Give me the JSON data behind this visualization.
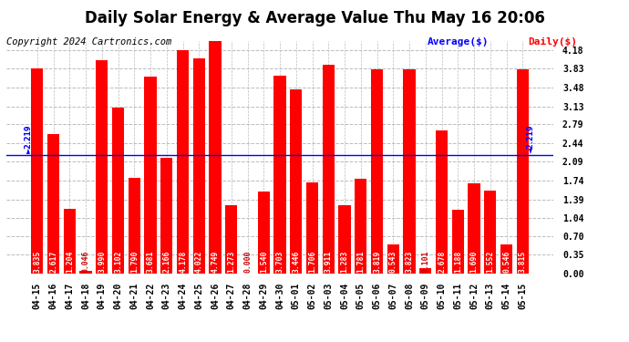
{
  "title": "Daily Solar Energy & Average Value Thu May 16 20:06",
  "copyright": "Copyright 2024 Cartronics.com",
  "legend_average": "Average($)",
  "legend_daily": "Daily($)",
  "average_value": 2.219,
  "categories": [
    "04-15",
    "04-16",
    "04-17",
    "04-18",
    "04-19",
    "04-20",
    "04-21",
    "04-22",
    "04-23",
    "04-24",
    "04-25",
    "04-26",
    "04-27",
    "04-28",
    "04-29",
    "04-30",
    "05-01",
    "05-02",
    "05-03",
    "05-04",
    "05-05",
    "05-06",
    "05-07",
    "05-08",
    "05-09",
    "05-10",
    "05-11",
    "05-12",
    "05-13",
    "05-14",
    "05-15"
  ],
  "values": [
    3.835,
    2.617,
    1.204,
    0.046,
    3.99,
    3.102,
    1.79,
    3.681,
    2.166,
    4.178,
    4.022,
    4.749,
    1.273,
    0.0,
    1.54,
    3.703,
    3.446,
    1.706,
    3.911,
    1.283,
    1.781,
    3.819,
    0.543,
    3.823,
    0.101,
    2.678,
    1.188,
    1.69,
    1.552,
    0.546,
    3.815
  ],
  "bar_color": "#ff0000",
  "average_line_color": "#0000ff",
  "avg_label_color": "#0000ff",
  "daily_label_color": "#ff0000",
  "background_color": "#ffffff",
  "grid_color": "#bbbbbb",
  "yticks": [
    0.0,
    0.35,
    0.7,
    1.04,
    1.39,
    1.74,
    2.09,
    2.44,
    2.79,
    3.13,
    3.48,
    3.83,
    4.18
  ],
  "ylim": [
    0,
    4.35
  ],
  "title_fontsize": 12,
  "tick_fontsize": 7,
  "value_fontsize": 5.8,
  "copyright_fontsize": 7.5,
  "legend_fontsize": 8
}
